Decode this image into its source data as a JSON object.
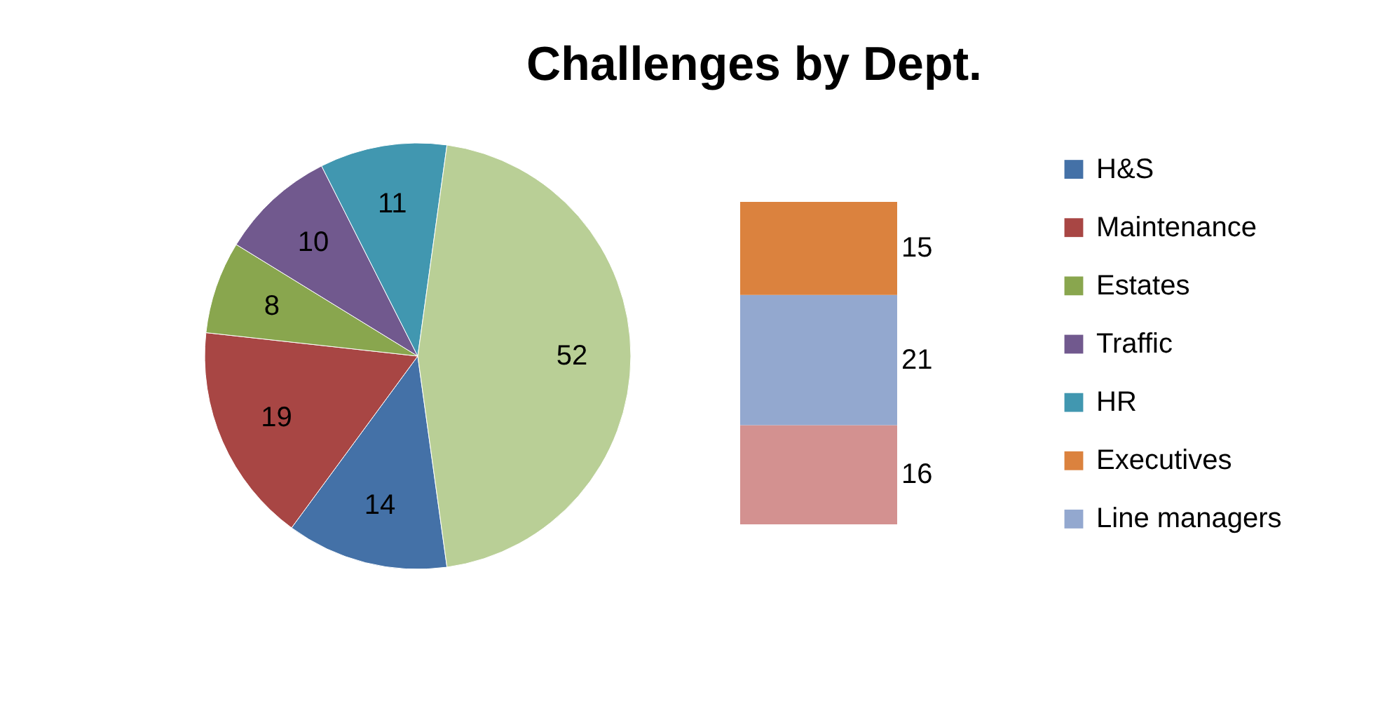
{
  "chart_data": [
    {
      "type": "pie",
      "title": "Challenges by Dept.",
      "categories": [
        "H&S",
        "Maintenance",
        "Estates",
        "Traffic",
        "HR",
        null
      ],
      "values": [
        14,
        19,
        8,
        10,
        11,
        52
      ],
      "colors": [
        "#4471a7",
        "#a84644",
        "#89a64e",
        "#71598e",
        "#4197b0",
        "#b9cf96"
      ],
      "data_labels": true,
      "legend": "right"
    },
    {
      "type": "bar",
      "categories": [
        null
      ],
      "stacked": true,
      "data_labels": true,
      "legend": "right",
      "series": [
        {
          "color": "#d39190",
          "values": [
            16
          ]
        },
        {
          "name": "Line managers",
          "color": "#93a8cf",
          "values": [
            21
          ]
        },
        {
          "name": "Executives",
          "color": "#db823e",
          "values": [
            15
          ]
        }
      ]
    }
  ]
}
